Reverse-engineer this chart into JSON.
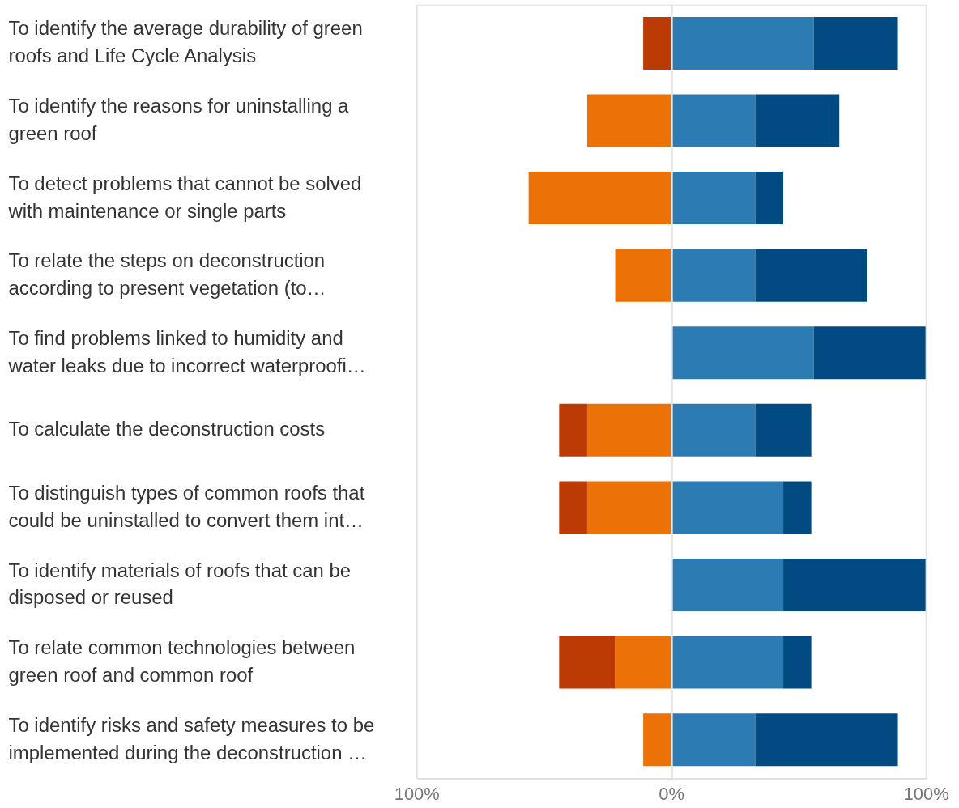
{
  "chart_data": {
    "type": "bar",
    "orientation": "horizontal",
    "stacked": true,
    "categories": [
      "To identify the average durability of green roofs and Life Cycle Analysis",
      "To identify the reasons for uninstalling a green roof",
      "To detect problems that cannot be solved with maintenance or single parts",
      "To relate the steps on deconstruction according to present vegetation (to…",
      "To find problems linked to humidity and water leaks due to incorrect waterproofi…",
      "To calculate the deconstruction costs",
      "To distinguish types of common roofs that could be uninstalled to convert them int…",
      "To identify materials of roofs that can be disposed or reused",
      "To relate common technologies between green roof and common roof",
      "To identify risks and safety measures to be implemented during the deconstruction …"
    ],
    "series": [
      {
        "color": "#ec7106",
        "values": [
          null,
          -33,
          -56,
          -22,
          null,
          -33,
          -33,
          null,
          -22,
          -11
        ]
      },
      {
        "color": "#bc3a03",
        "values": [
          -11,
          null,
          null,
          null,
          null,
          -11,
          -11,
          null,
          -22,
          null
        ]
      },
      {
        "color": "#2c7bb2",
        "values": [
          56,
          33,
          33,
          33,
          56,
          33,
          44,
          44,
          44,
          33
        ]
      },
      {
        "color": "#014a82",
        "values": [
          33,
          33,
          11,
          44,
          44,
          22,
          11,
          56,
          11,
          56
        ]
      }
    ],
    "xlim": [
      -100,
      100
    ],
    "xticks": [
      {
        "value": -100,
        "label": "100%"
      },
      {
        "value": 0,
        "label": "0%"
      },
      {
        "value": 100,
        "label": "100%"
      }
    ],
    "grid": "x"
  }
}
